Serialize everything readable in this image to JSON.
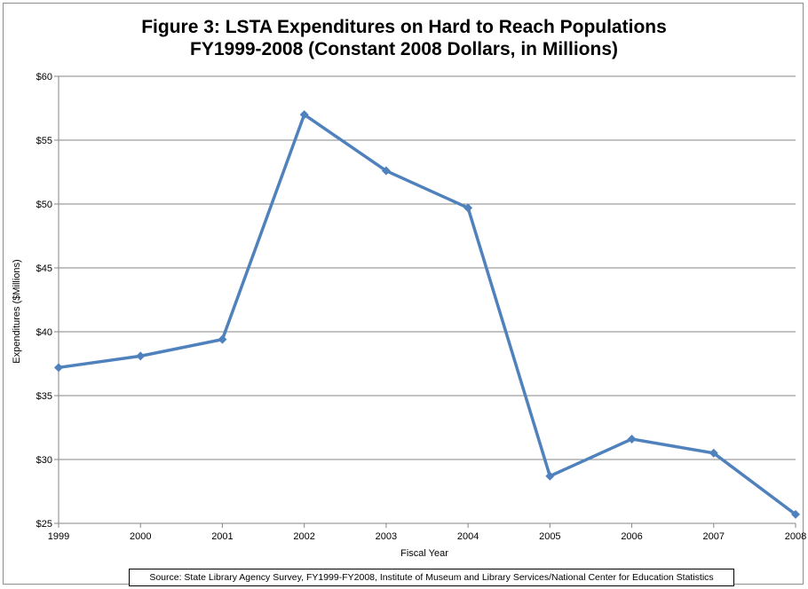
{
  "chart_data": {
    "type": "line",
    "title": "Figure 3: LSTA Expenditures on Hard to Reach Populations",
    "subtitle": "FY1999-2008 (Constant 2008 Dollars, in Millions)",
    "xlabel": "Fiscal Year",
    "ylabel": "Expenditures ($Millions)",
    "x": [
      "1999",
      "2000",
      "2001",
      "2002",
      "2003",
      "2004",
      "2005",
      "2006",
      "2007",
      "2008"
    ],
    "y_ticks": [
      "$25",
      "$30",
      "$35",
      "$40",
      "$45",
      "$50",
      "$55",
      "$60"
    ],
    "ylim": [
      25,
      60
    ],
    "grid": true,
    "legend": "none",
    "series": [
      {
        "values": [
          37.2,
          38.1,
          39.4,
          57.0,
          52.6,
          49.7,
          28.7,
          31.6,
          30.5,
          25.7
        ],
        "color": "#4f81bd"
      }
    ],
    "source": "Source: State Library Agency Survey, FY1999-FY2008, Institute of Museum and Library Services/National Center for Education Statistics"
  }
}
